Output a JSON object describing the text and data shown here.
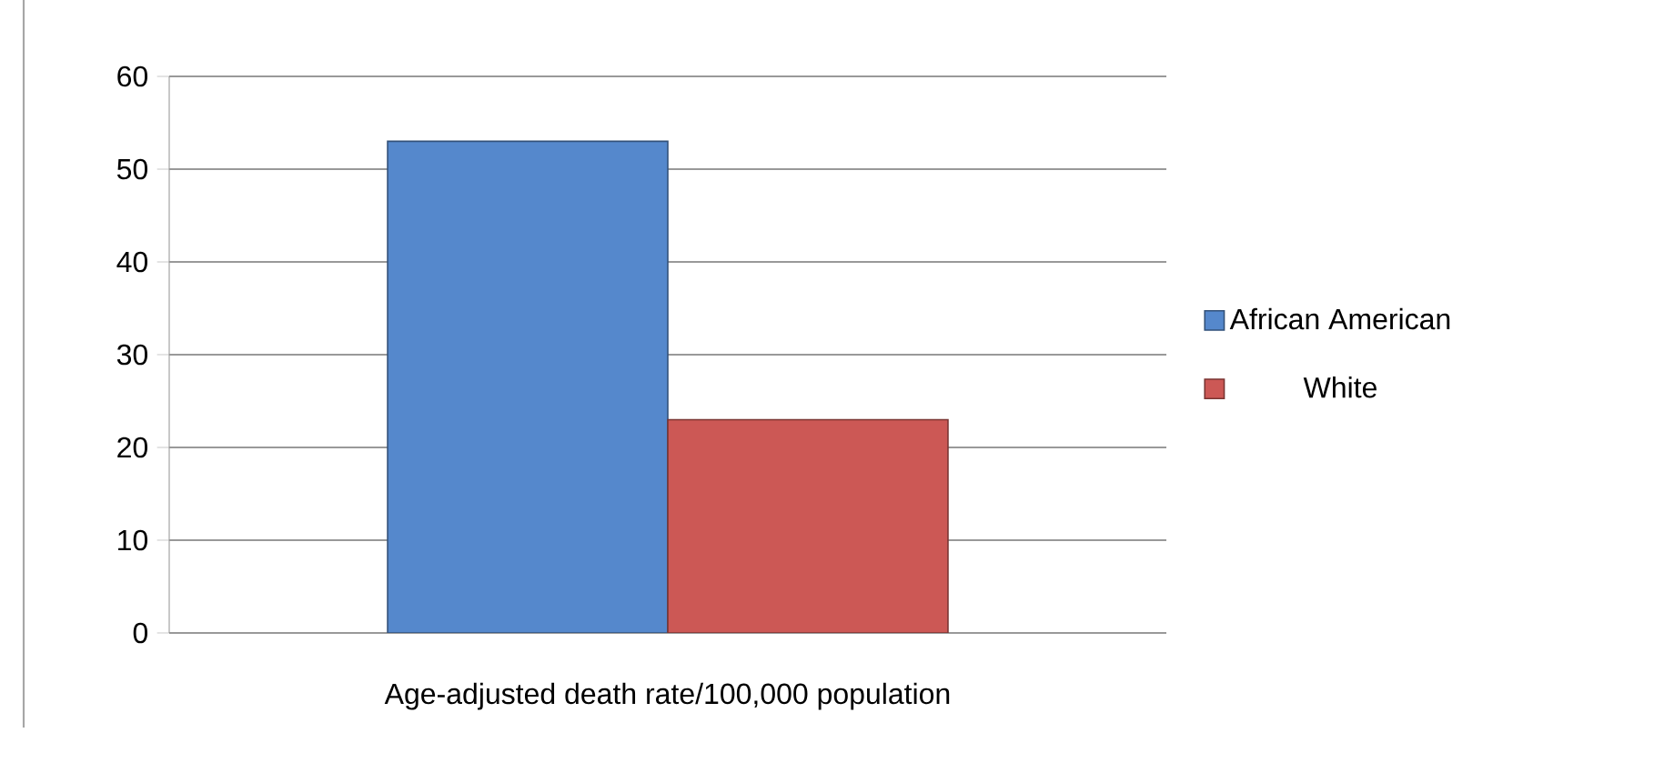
{
  "chart_data": {
    "type": "bar",
    "categories": [
      "Age-adjusted death rate/100,000 population"
    ],
    "series": [
      {
        "name": "African American",
        "color": "#5588cc",
        "values": [
          53
        ]
      },
      {
        "name": "White",
        "color": "#cc5855",
        "values": [
          23
        ]
      }
    ],
    "ylim": [
      0,
      60
    ],
    "yticks": [
      0,
      10,
      20,
      30,
      40,
      50,
      60
    ],
    "grid": "y",
    "legend": "right"
  }
}
